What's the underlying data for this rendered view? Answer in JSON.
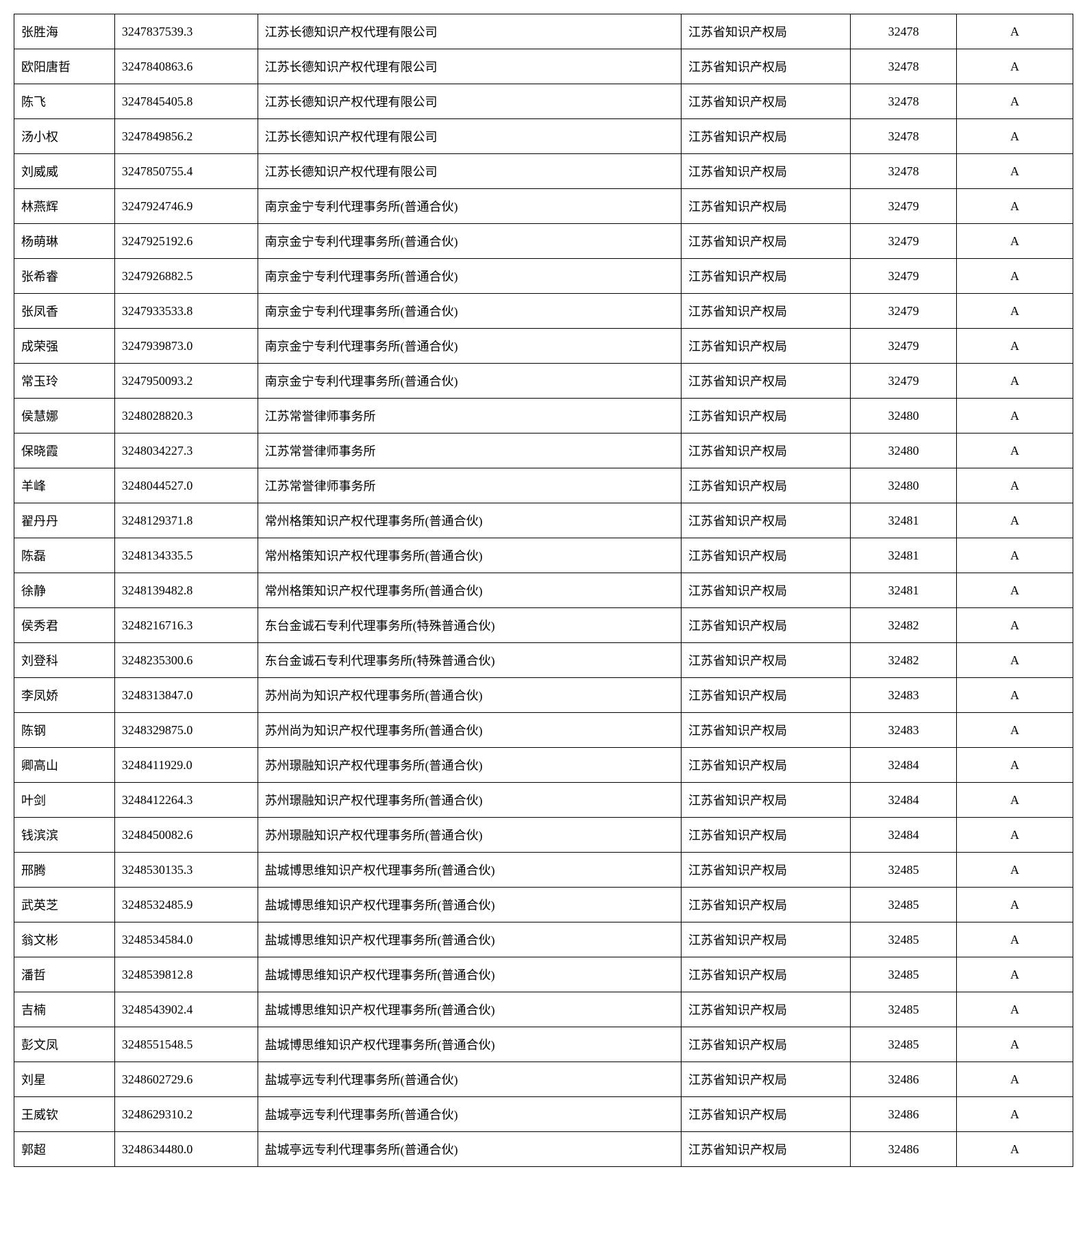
{
  "table": {
    "columns": [
      {
        "key": "name",
        "class": "col-name",
        "align": "left"
      },
      {
        "key": "id",
        "class": "col-id",
        "align": "left"
      },
      {
        "key": "company",
        "class": "col-company",
        "align": "left"
      },
      {
        "key": "bureau",
        "class": "col-bureau",
        "align": "left"
      },
      {
        "key": "code",
        "class": "col-code",
        "align": "center"
      },
      {
        "key": "grade",
        "class": "col-grade",
        "align": "center"
      }
    ],
    "rows": [
      {
        "name": "张胜海",
        "id": "3247837539.3",
        "company": "江苏长德知识产权代理有限公司",
        "bureau": "江苏省知识产权局",
        "code": "32478",
        "grade": "A"
      },
      {
        "name": "欧阳唐哲",
        "id": "3247840863.6",
        "company": "江苏长德知识产权代理有限公司",
        "bureau": "江苏省知识产权局",
        "code": "32478",
        "grade": "A"
      },
      {
        "name": "陈飞",
        "id": "3247845405.8",
        "company": "江苏长德知识产权代理有限公司",
        "bureau": "江苏省知识产权局",
        "code": "32478",
        "grade": "A"
      },
      {
        "name": "汤小权",
        "id": "3247849856.2",
        "company": "江苏长德知识产权代理有限公司",
        "bureau": "江苏省知识产权局",
        "code": "32478",
        "grade": "A"
      },
      {
        "name": "刘威威",
        "id": "3247850755.4",
        "company": "江苏长德知识产权代理有限公司",
        "bureau": "江苏省知识产权局",
        "code": "32478",
        "grade": "A"
      },
      {
        "name": "林燕辉",
        "id": "3247924746.9",
        "company": "南京金宁专利代理事务所(普通合伙)",
        "bureau": "江苏省知识产权局",
        "code": "32479",
        "grade": "A"
      },
      {
        "name": "杨萌琳",
        "id": "3247925192.6",
        "company": "南京金宁专利代理事务所(普通合伙)",
        "bureau": "江苏省知识产权局",
        "code": "32479",
        "grade": "A"
      },
      {
        "name": "张希睿",
        "id": "3247926882.5",
        "company": "南京金宁专利代理事务所(普通合伙)",
        "bureau": "江苏省知识产权局",
        "code": "32479",
        "grade": "A"
      },
      {
        "name": "张凤香",
        "id": "3247933533.8",
        "company": "南京金宁专利代理事务所(普通合伙)",
        "bureau": "江苏省知识产权局",
        "code": "32479",
        "grade": "A"
      },
      {
        "name": "成荣强",
        "id": "3247939873.0",
        "company": "南京金宁专利代理事务所(普通合伙)",
        "bureau": "江苏省知识产权局",
        "code": "32479",
        "grade": "A"
      },
      {
        "name": "常玉玲",
        "id": "3247950093.2",
        "company": "南京金宁专利代理事务所(普通合伙)",
        "bureau": "江苏省知识产权局",
        "code": "32479",
        "grade": "A"
      },
      {
        "name": "侯慧娜",
        "id": "3248028820.3",
        "company": "江苏常誉律师事务所",
        "bureau": "江苏省知识产权局",
        "code": "32480",
        "grade": "A"
      },
      {
        "name": "保晓霞",
        "id": "3248034227.3",
        "company": "江苏常誉律师事务所",
        "bureau": "江苏省知识产权局",
        "code": "32480",
        "grade": "A"
      },
      {
        "name": "羊峰",
        "id": "3248044527.0",
        "company": "江苏常誉律师事务所",
        "bureau": "江苏省知识产权局",
        "code": "32480",
        "grade": "A"
      },
      {
        "name": "翟丹丹",
        "id": "3248129371.8",
        "company": "常州格策知识产权代理事务所(普通合伙)",
        "bureau": "江苏省知识产权局",
        "code": "32481",
        "grade": "A"
      },
      {
        "name": "陈磊",
        "id": "3248134335.5",
        "company": "常州格策知识产权代理事务所(普通合伙)",
        "bureau": "江苏省知识产权局",
        "code": "32481",
        "grade": "A"
      },
      {
        "name": "徐静",
        "id": "3248139482.8",
        "company": "常州格策知识产权代理事务所(普通合伙)",
        "bureau": "江苏省知识产权局",
        "code": "32481",
        "grade": "A"
      },
      {
        "name": "侯秀君",
        "id": "3248216716.3",
        "company": "东台金诚石专利代理事务所(特殊普通合伙)",
        "bureau": "江苏省知识产权局",
        "code": "32482",
        "grade": "A"
      },
      {
        "name": "刘登科",
        "id": "3248235300.6",
        "company": "东台金诚石专利代理事务所(特殊普通合伙)",
        "bureau": "江苏省知识产权局",
        "code": "32482",
        "grade": "A"
      },
      {
        "name": "李凤娇",
        "id": "3248313847.0",
        "company": "苏州尚为知识产权代理事务所(普通合伙)",
        "bureau": "江苏省知识产权局",
        "code": "32483",
        "grade": "A"
      },
      {
        "name": "陈钢",
        "id": "3248329875.0",
        "company": "苏州尚为知识产权代理事务所(普通合伙)",
        "bureau": "江苏省知识产权局",
        "code": "32483",
        "grade": "A"
      },
      {
        "name": "卿高山",
        "id": "3248411929.0",
        "company": "苏州璟融知识产权代理事务所(普通合伙)",
        "bureau": "江苏省知识产权局",
        "code": "32484",
        "grade": "A"
      },
      {
        "name": "叶剑",
        "id": "3248412264.3",
        "company": "苏州璟融知识产权代理事务所(普通合伙)",
        "bureau": "江苏省知识产权局",
        "code": "32484",
        "grade": "A"
      },
      {
        "name": "钱滨滨",
        "id": "3248450082.6",
        "company": "苏州璟融知识产权代理事务所(普通合伙)",
        "bureau": "江苏省知识产权局",
        "code": "32484",
        "grade": "A"
      },
      {
        "name": "邢腾",
        "id": "3248530135.3",
        "company": "盐城博思维知识产权代理事务所(普通合伙)",
        "bureau": "江苏省知识产权局",
        "code": "32485",
        "grade": "A"
      },
      {
        "name": "武英芝",
        "id": "3248532485.9",
        "company": "盐城博思维知识产权代理事务所(普通合伙)",
        "bureau": "江苏省知识产权局",
        "code": "32485",
        "grade": "A"
      },
      {
        "name": "翁文彬",
        "id": "3248534584.0",
        "company": "盐城博思维知识产权代理事务所(普通合伙)",
        "bureau": "江苏省知识产权局",
        "code": "32485",
        "grade": "A"
      },
      {
        "name": "潘哲",
        "id": "3248539812.8",
        "company": "盐城博思维知识产权代理事务所(普通合伙)",
        "bureau": "江苏省知识产权局",
        "code": "32485",
        "grade": "A"
      },
      {
        "name": "吉楠",
        "id": "3248543902.4",
        "company": "盐城博思维知识产权代理事务所(普通合伙)",
        "bureau": "江苏省知识产权局",
        "code": "32485",
        "grade": "A"
      },
      {
        "name": "彭文凤",
        "id": "3248551548.5",
        "company": "盐城博思维知识产权代理事务所(普通合伙)",
        "bureau": "江苏省知识产权局",
        "code": "32485",
        "grade": "A"
      },
      {
        "name": "刘星",
        "id": "3248602729.6",
        "company": "盐城亭远专利代理事务所(普通合伙)",
        "bureau": "江苏省知识产权局",
        "code": "32486",
        "grade": "A"
      },
      {
        "name": "王威钦",
        "id": "3248629310.2",
        "company": "盐城亭远专利代理事务所(普通合伙)",
        "bureau": "江苏省知识产权局",
        "code": "32486",
        "grade": "A"
      },
      {
        "name": "郭超",
        "id": "3248634480.0",
        "company": "盐城亭远专利代理事务所(普通合伙)",
        "bureau": "江苏省知识产权局",
        "code": "32486",
        "grade": "A"
      }
    ],
    "styling": {
      "border_color": "#000000",
      "background_color": "#ffffff",
      "text_color": "#000000",
      "font_size": 18,
      "font_family": "SimSun",
      "cell_padding": "12px 10px"
    }
  }
}
